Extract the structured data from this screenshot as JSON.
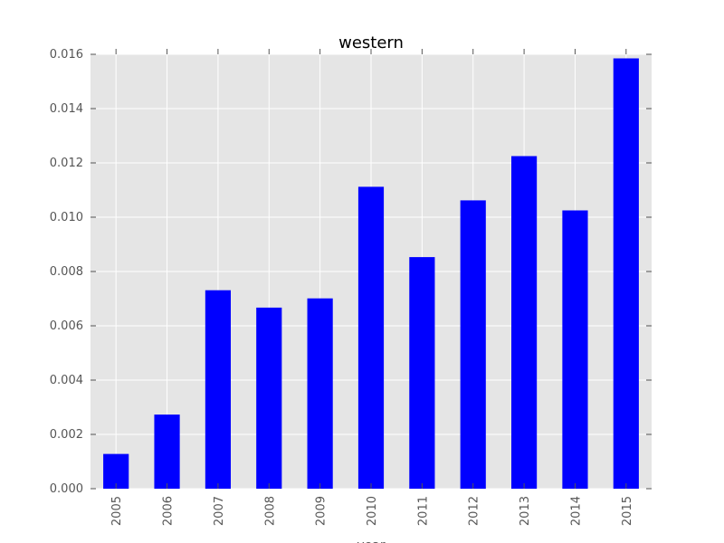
{
  "chart_data": {
    "type": "bar",
    "title": "western",
    "xlabel": "year",
    "ylabel": "",
    "categories": [
      "2005",
      "2006",
      "2007",
      "2008",
      "2009",
      "2010",
      "2011",
      "2012",
      "2013",
      "2014",
      "2015"
    ],
    "values": [
      0.00128,
      0.00273,
      0.00731,
      0.00667,
      0.00701,
      0.01112,
      0.00853,
      0.01062,
      0.01225,
      0.01025,
      0.01585
    ],
    "ylim": [
      0,
      0.016
    ],
    "yticks": [
      "0.000",
      "0.002",
      "0.004",
      "0.006",
      "0.008",
      "0.010",
      "0.012",
      "0.014",
      "0.016"
    ],
    "grid": true,
    "legend": "none"
  },
  "colors": {
    "bar": "#0000ff",
    "plot_background": "#e5e5e5",
    "grid": "#ffffff",
    "tick_text": "#555555",
    "tick_mark": "#555555"
  }
}
